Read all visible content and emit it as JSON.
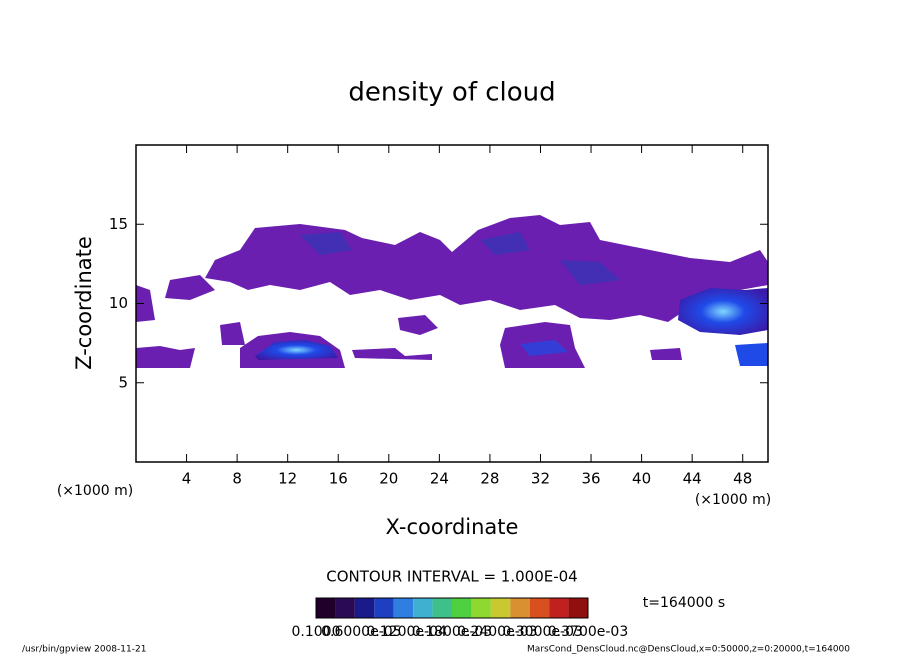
{
  "chart_data": {
    "type": "contour",
    "title": "density of cloud",
    "x_label": "X-coordinate",
    "y_label": "Z-coordinate",
    "x_unit": "(×1000 m)",
    "y_unit": "(×1000 m)",
    "xlim": [
      0,
      50
    ],
    "ylim": [
      0,
      20
    ],
    "xticks": [
      4,
      8,
      12,
      16,
      20,
      24,
      28,
      32,
      36,
      40,
      44,
      48
    ],
    "yticks": [
      5,
      10,
      15
    ],
    "contour_interval": "CONTOUR INTERVAL = 1.000E-04",
    "time_label": "t=164000 s",
    "colorbar_labels": [
      "0.1000",
      "0.6000e-05",
      "0.1200e-04",
      "0.1800e-03",
      "0.2400e-03",
      "0.3000e-03",
      "0.3700e-03"
    ],
    "colorbar_colors": [
      "#20002a",
      "#2a0a55",
      "#1a1a8a",
      "#1e3fc0",
      "#2f7fe0",
      "#3fb0d0",
      "#3fc08a",
      "#4fd040",
      "#8fd830",
      "#c8c830",
      "#d89030",
      "#d85020",
      "#c02020",
      "#901010"
    ],
    "footer_left": "/usr/bin/gpview  2008-11-21",
    "footer_right": "MarsCond_DensCloud.nc@DensCloud,x=0:50000,z=0:20000,t=164000"
  }
}
